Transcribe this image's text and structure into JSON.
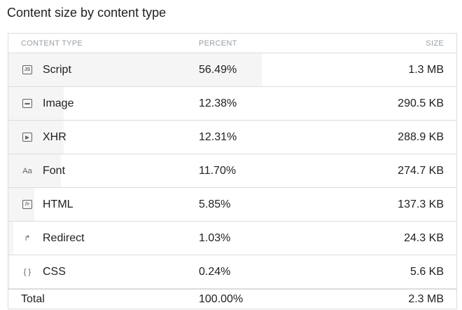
{
  "title": "Content size by content type",
  "columns": {
    "type": "CONTENT TYPE",
    "percent": "PERCENT",
    "size": "SIZE"
  },
  "rows": [
    {
      "type": "Script",
      "percent": "56.49%",
      "size": "1.3 MB",
      "pct": 56.49,
      "icon": "script-icon",
      "glyph": "JS"
    },
    {
      "type": "Image",
      "percent": "12.38%",
      "size": "290.5 KB",
      "pct": 12.38,
      "icon": "image-icon",
      "glyph": "▬"
    },
    {
      "type": "XHR",
      "percent": "12.31%",
      "size": "288.9 KB",
      "pct": 12.31,
      "icon": "xhr-icon",
      "glyph": "▶"
    },
    {
      "type": "Font",
      "percent": "11.70%",
      "size": "274.7 KB",
      "pct": 11.7,
      "icon": "font-icon",
      "glyph": "Aa"
    },
    {
      "type": "HTML",
      "percent": "5.85%",
      "size": "137.3 KB",
      "pct": 5.85,
      "icon": "html-icon",
      "glyph": "/>"
    },
    {
      "type": "Redirect",
      "percent": "1.03%",
      "size": "24.3 KB",
      "pct": 1.03,
      "icon": "redirect-icon",
      "glyph": "↱"
    },
    {
      "type": "CSS",
      "percent": "0.24%",
      "size": "5.6 KB",
      "pct": 0.24,
      "icon": "css-icon",
      "glyph": "{ }"
    }
  ],
  "total": {
    "label": "Total",
    "percent": "100.00%",
    "size": "2.3 MB"
  }
}
